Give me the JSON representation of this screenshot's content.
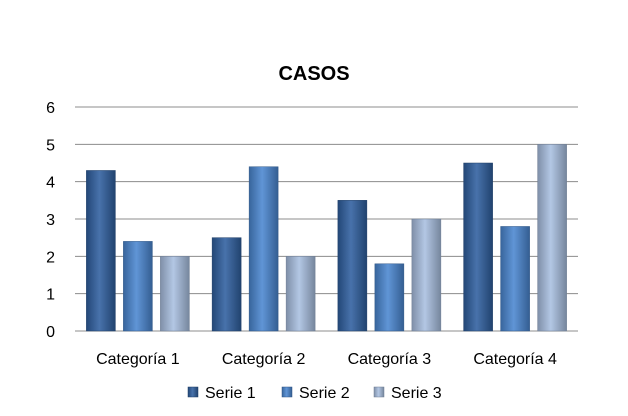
{
  "chart_data": {
    "type": "bar",
    "title": "CASOS",
    "categories": [
      "Categoría 1",
      "Categoría 2",
      "Categoría 3",
      "Categoría 4"
    ],
    "series": [
      {
        "name": "Serie 1",
        "values": [
          4.3,
          2.5,
          3.5,
          4.5
        ],
        "color": "#2f5f9f"
      },
      {
        "name": "Serie 2",
        "values": [
          2.4,
          4.4,
          1.8,
          2.8
        ],
        "color": "#4a86d0"
      },
      {
        "name": "Serie 3",
        "values": [
          2.0,
          2.0,
          3.0,
          5.0
        ],
        "color": "#a9bfe0"
      }
    ],
    "ylim": [
      0,
      6
    ],
    "yticks": [
      "0",
      "1",
      "2",
      "3",
      "4",
      "5",
      "6"
    ],
    "grid": true,
    "legend_position": "bottom"
  }
}
